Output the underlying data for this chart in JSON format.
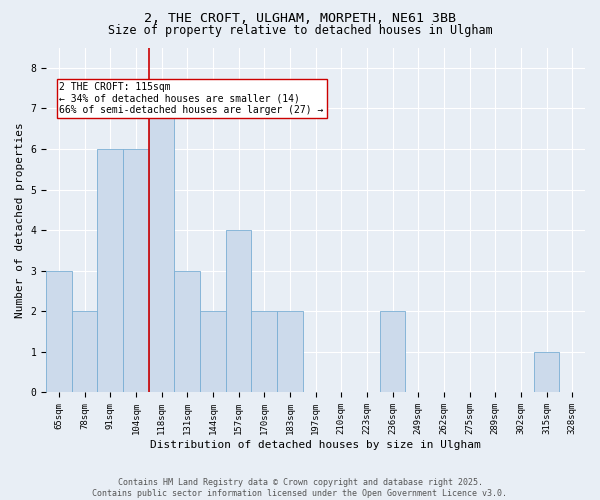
{
  "title_line1": "2, THE CROFT, ULGHAM, MORPETH, NE61 3BB",
  "title_line2": "Size of property relative to detached houses in Ulgham",
  "xlabel": "Distribution of detached houses by size in Ulgham",
  "ylabel": "Number of detached properties",
  "categories": [
    "65sqm",
    "78sqm",
    "91sqm",
    "104sqm",
    "118sqm",
    "131sqm",
    "144sqm",
    "157sqm",
    "170sqm",
    "183sqm",
    "197sqm",
    "210sqm",
    "223sqm",
    "236sqm",
    "249sqm",
    "262sqm",
    "275sqm",
    "289sqm",
    "302sqm",
    "315sqm",
    "328sqm"
  ],
  "values": [
    3,
    2,
    6,
    6,
    7,
    3,
    2,
    4,
    2,
    2,
    0,
    0,
    0,
    2,
    0,
    0,
    0,
    0,
    0,
    1,
    0
  ],
  "bar_color": "#ccdaeb",
  "bar_edge_color": "#7aaed4",
  "highlight_line_index": 3.5,
  "highlight_color": "#cc0000",
  "annotation_text": "2 THE CROFT: 115sqm\n← 34% of detached houses are smaller (14)\n66% of semi-detached houses are larger (27) →",
  "ylim": [
    0,
    8.5
  ],
  "yticks": [
    0,
    1,
    2,
    3,
    4,
    5,
    6,
    7,
    8
  ],
  "footer_text": "Contains HM Land Registry data © Crown copyright and database right 2025.\nContains public sector information licensed under the Open Government Licence v3.0.",
  "background_color": "#e8eef5",
  "plot_bg_color": "#e8eef5",
  "grid_color": "#ffffff",
  "title_fontsize": 9.5,
  "subtitle_fontsize": 8.5,
  "tick_fontsize": 6.5,
  "label_fontsize": 8,
  "annotation_fontsize": 7,
  "footer_fontsize": 6
}
